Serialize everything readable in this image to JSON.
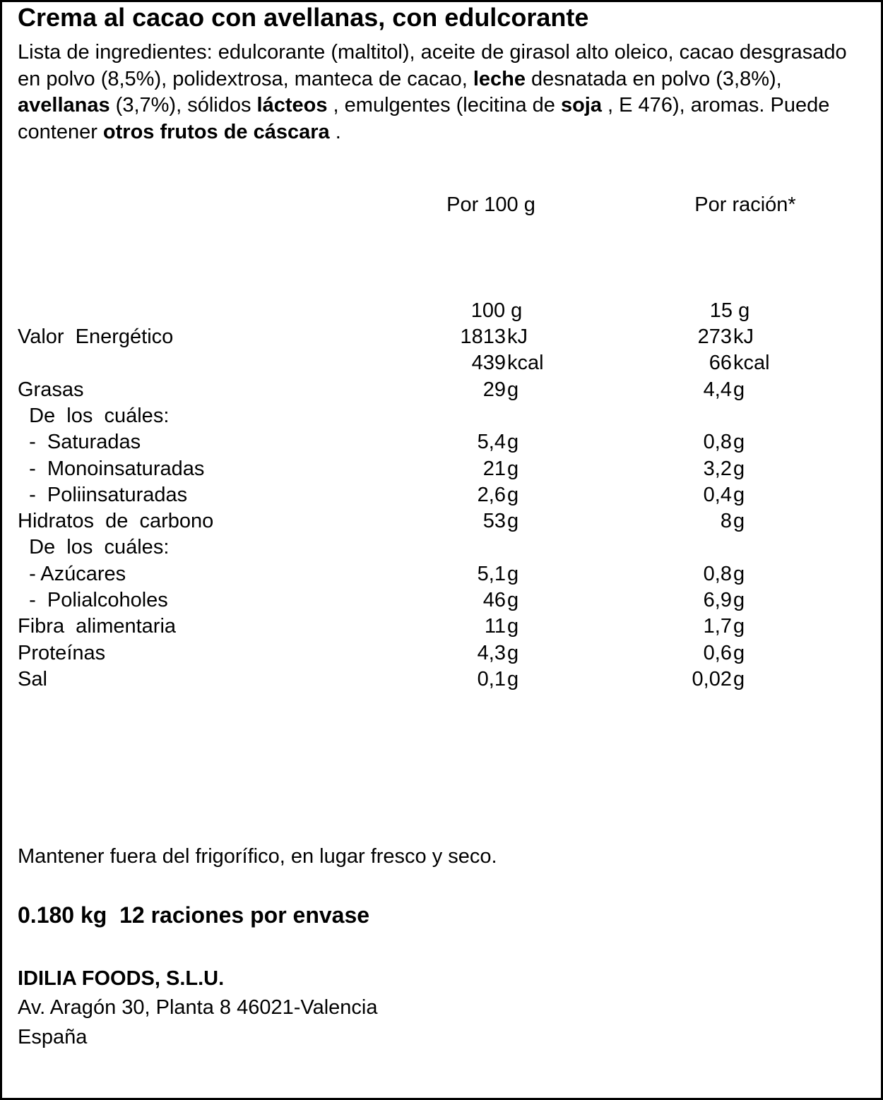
{
  "title": "Crema al cacao con avellanas, con edulcorante",
  "ingredients": [
    {
      "t": "Lista de ingredientes: edulcorante (maltitol), aceite de girasol alto oleico, cacao desgrasado en polvo (8,5%), polidextrosa, manteca de cacao, ",
      "b": false
    },
    {
      "t": "leche",
      "b": true
    },
    {
      "t": " desnatada en polvo (3,8%), ",
      "b": false
    },
    {
      "t": "avellanas",
      "b": true
    },
    {
      "t": " (3,7%), sólidos ",
      "b": false
    },
    {
      "t": "lácteos",
      "b": true
    },
    {
      "t": " , emulgentes (lecitina de ",
      "b": false
    },
    {
      "t": "soja",
      "b": true
    },
    {
      "t": " , E 476), aromas. Puede contener ",
      "b": false
    },
    {
      "t": "otros frutos de cáscara",
      "b": true
    },
    {
      "t": " .",
      "b": false
    }
  ],
  "table": {
    "col1_header": "Por 100 g",
    "col2_header": "Por ración*",
    "portion_row": {
      "col1": "100 g",
      "col2": "15 g"
    },
    "rows": [
      {
        "label": "Valor  Energético",
        "v1": "1813",
        "u1": "kJ",
        "v2": "273",
        "u2": "kJ"
      },
      {
        "label": "",
        "v1": "439",
        "u1": "kcal",
        "v2": "66",
        "u2": "kcal"
      },
      {
        "label": "Grasas",
        "v1": "29",
        "u1": "g",
        "v2": "4,4",
        "u2": "g"
      },
      {
        "label": "  De  los  cuáles:",
        "v1": "",
        "u1": "",
        "v2": "",
        "u2": ""
      },
      {
        "label": "  -  Saturadas",
        "v1": "5,4",
        "u1": "g",
        "v2": "0,8",
        "u2": "g"
      },
      {
        "label": "  -  Monoinsaturadas",
        "v1": "21",
        "u1": "g",
        "v2": "3,2",
        "u2": "g"
      },
      {
        "label": "  -  Poliinsaturadas",
        "v1": "2,6",
        "u1": "g",
        "v2": "0,4",
        "u2": "g"
      },
      {
        "label": "Hidratos  de  carbono",
        "v1": "53",
        "u1": "g",
        "v2": "8",
        "u2": "g"
      },
      {
        "label": "  De  los  cuáles:",
        "v1": "",
        "u1": "",
        "v2": "",
        "u2": ""
      },
      {
        "label": "  - Azúcares",
        "v1": "5,1",
        "u1": "g",
        "v2": "0,8",
        "u2": "g"
      },
      {
        "label": "  -  Polialcoholes",
        "v1": "46",
        "u1": "g",
        "v2": "6,9",
        "u2": "g"
      },
      {
        "label": "Fibra  alimentaria",
        "v1": "11",
        "u1": "g",
        "v2": "1,7",
        "u2": "g"
      },
      {
        "label": "Proteínas",
        "v1": "4,3",
        "u1": "g",
        "v2": "0,6",
        "u2": "g"
      },
      {
        "label": "Sal",
        "v1": "0,1",
        "u1": "g",
        "v2": "0,02",
        "u2": "g"
      }
    ]
  },
  "storage": "Mantener fuera del frigorífico, en lugar fresco y seco.",
  "net_weight": "0.180 kg  12 raciones por envase",
  "company": "IDILIA FOODS, S.L.U.",
  "address": "Av. Aragón 30, Planta 8 46021-Valencia",
  "country": "España"
}
